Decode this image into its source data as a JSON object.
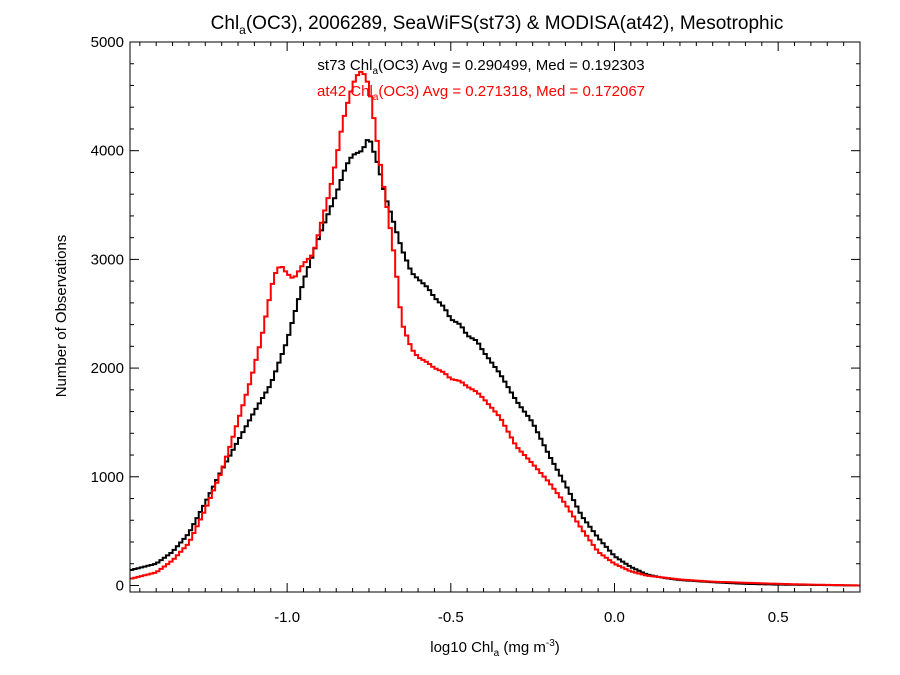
{
  "chart_data": {
    "type": "line",
    "title_main": "Chl",
    "title_sub": "a",
    "title_rest": "(OC3), 2006289, SeaWiFS(st73) & MODISA(at42), Mesotrophic",
    "xlabel_main": "log10 Chl",
    "xlabel_sub": "a",
    "xlabel_unit_pre": " (mg m",
    "xlabel_unit_sup": "-3",
    "xlabel_unit_post": ")",
    "ylabel": "Number of Observations",
    "xlim": [
      -1.48,
      0.75
    ],
    "ylim": [
      -60,
      5000
    ],
    "xticks": [
      -1.0,
      -0.5,
      0.0,
      0.5
    ],
    "xtick_labels": [
      "-1.0",
      "-0.5",
      "0.0",
      "0.5"
    ],
    "yticks": [
      0,
      1000,
      2000,
      3000,
      4000,
      5000
    ],
    "ytick_labels": [
      "0",
      "1000",
      "2000",
      "3000",
      "4000",
      "5000"
    ],
    "series": [
      {
        "color": "#000000",
        "legend_main": "st73 Chl",
        "legend_sub": "a",
        "legend_rest": "(OC3) Avg = 0.290499, Med = 0.192303",
        "x": [
          -1.48,
          -1.4,
          -1.35,
          -1.3,
          -1.25,
          -1.2,
          -1.15,
          -1.1,
          -1.05,
          -1.0,
          -0.95,
          -0.9,
          -0.85,
          -0.82,
          -0.8,
          -0.77,
          -0.75,
          -0.72,
          -0.7,
          -0.67,
          -0.65,
          -0.62,
          -0.6,
          -0.57,
          -0.55,
          -0.52,
          -0.5,
          -0.47,
          -0.45,
          -0.42,
          -0.4,
          -0.35,
          -0.3,
          -0.25,
          -0.2,
          -0.15,
          -0.1,
          -0.05,
          0.0,
          0.05,
          0.1,
          0.15,
          0.2,
          0.3,
          0.4,
          0.5,
          0.6,
          0.75
        ],
        "y": [
          140,
          200,
          310,
          480,
          760,
          1060,
          1330,
          1600,
          1850,
          2250,
          2800,
          3230,
          3600,
          3860,
          3960,
          4000,
          4130,
          3850,
          3580,
          3300,
          3100,
          2880,
          2820,
          2740,
          2650,
          2560,
          2450,
          2400,
          2300,
          2250,
          2150,
          1950,
          1700,
          1500,
          1200,
          930,
          640,
          440,
          270,
          170,
          100,
          70,
          50,
          30,
          15,
          8,
          5,
          0
        ]
      },
      {
        "color": "#ff0000",
        "legend_main": "at42 Chl",
        "legend_sub": "a",
        "legend_rest": "(OC3) Avg = 0.271318, Med = 0.172067",
        "x": [
          -1.48,
          -1.4,
          -1.35,
          -1.3,
          -1.25,
          -1.2,
          -1.17,
          -1.14,
          -1.11,
          -1.08,
          -1.06,
          -1.04,
          -1.02,
          -1.0,
          -0.98,
          -0.95,
          -0.92,
          -0.9,
          -0.87,
          -0.85,
          -0.83,
          -0.81,
          -0.79,
          -0.77,
          -0.75,
          -0.73,
          -0.71,
          -0.69,
          -0.67,
          -0.65,
          -0.62,
          -0.6,
          -0.57,
          -0.55,
          -0.52,
          -0.5,
          -0.47,
          -0.45,
          -0.42,
          -0.4,
          -0.35,
          -0.3,
          -0.25,
          -0.2,
          -0.15,
          -0.1,
          -0.05,
          0.0,
          0.05,
          0.1,
          0.2,
          0.3,
          0.4,
          0.5,
          0.6,
          0.75
        ],
        "y": [
          60,
          120,
          230,
          390,
          700,
          1050,
          1320,
          1610,
          1900,
          2250,
          2550,
          2850,
          2950,
          2870,
          2820,
          2960,
          3050,
          3280,
          3620,
          3920,
          4260,
          4500,
          4680,
          4740,
          4600,
          4200,
          3760,
          3390,
          2980,
          2420,
          2180,
          2100,
          2050,
          2000,
          1960,
          1900,
          1880,
          1830,
          1780,
          1720,
          1550,
          1280,
          1120,
          950,
          750,
          520,
          310,
          200,
          130,
          90,
          55,
          35,
          25,
          15,
          8,
          0
        ]
      }
    ],
    "grid": false,
    "legend_position": "top-center"
  }
}
